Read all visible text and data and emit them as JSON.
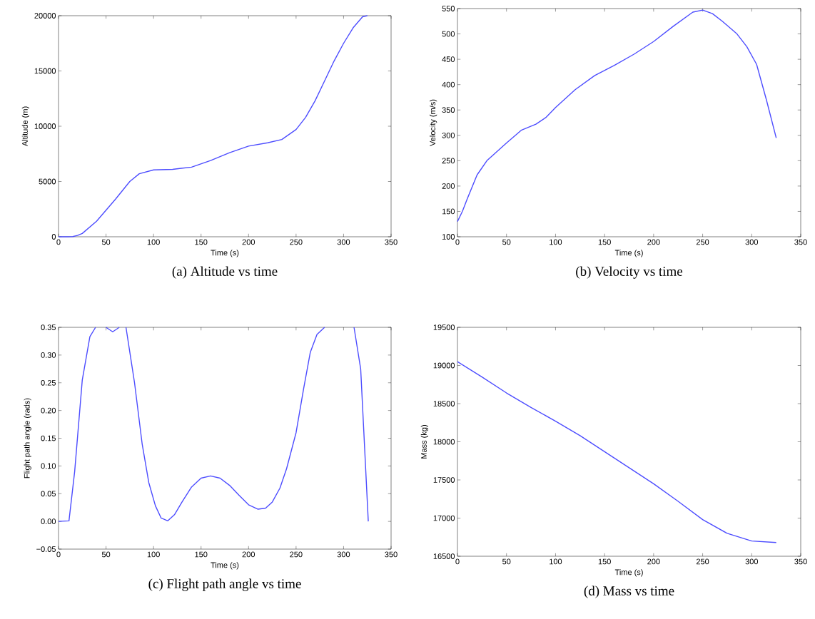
{
  "chart_data": [
    {
      "type": "line",
      "xlabel": "Time (s)",
      "ylabel": "Altitude (m)",
      "annotations": [
        "(a)  Altitude vs time"
      ],
      "xlim": [
        0,
        350
      ],
      "ylim": [
        0,
        20000
      ],
      "xticks": [
        0,
        50,
        100,
        150,
        200,
        250,
        300,
        350
      ],
      "yticks": [
        0,
        5000,
        10000,
        15000,
        20000
      ],
      "x": [
        0,
        10,
        15,
        20,
        25,
        40,
        60,
        75,
        85,
        100,
        120,
        140,
        160,
        180,
        200,
        220,
        235,
        250,
        260,
        270,
        280,
        290,
        300,
        310,
        320,
        325
      ],
      "series": [
        {
          "color": "#4d4dff",
          "values": [
            0,
            0,
            20,
            120,
            300,
            1400,
            3400,
            5000,
            5700,
            6050,
            6100,
            6300,
            6900,
            7600,
            8200,
            8500,
            8800,
            9700,
            10800,
            12300,
            14100,
            15900,
            17500,
            18900,
            19900,
            20000
          ]
        }
      ]
    },
    {
      "type": "line",
      "xlabel": "Time (s)",
      "ylabel": "Velocity (m/s)",
      "annotations": [
        "(b)  Velocity vs time"
      ],
      "xlim": [
        0,
        350
      ],
      "ylim": [
        100,
        550
      ],
      "xticks": [
        0,
        50,
        100,
        150,
        200,
        250,
        300,
        350
      ],
      "yticks": [
        100,
        150,
        200,
        250,
        300,
        350,
        400,
        450,
        500,
        550
      ],
      "x": [
        0,
        5,
        10,
        20,
        30,
        50,
        65,
        80,
        90,
        100,
        120,
        140,
        160,
        180,
        200,
        220,
        240,
        250,
        260,
        270,
        285,
        295,
        305,
        315,
        325
      ],
      "series": [
        {
          "color": "#4d4dff",
          "values": [
            130,
            150,
            175,
            222,
            250,
            285,
            310,
            322,
            335,
            355,
            390,
            418,
            438,
            460,
            485,
            515,
            543,
            547,
            540,
            525,
            500,
            475,
            440,
            370,
            295
          ]
        }
      ]
    },
    {
      "type": "line",
      "xlabel": "Time (s)",
      "ylabel": "Flight path angle (rads)",
      "annotations": [
        "(c)  Flight path angle vs time"
      ],
      "xlim": [
        0,
        350
      ],
      "ylim": [
        -0.05,
        0.35
      ],
      "xticks": [
        0,
        50,
        100,
        150,
        200,
        250,
        300,
        350
      ],
      "yticks": [
        {
          "value": -0.05,
          "label": "−0.05"
        },
        {
          "value": 0,
          "label": "0.00"
        },
        {
          "value": 0.05,
          "label": "0.05"
        },
        {
          "value": 0.1,
          "label": "0.10"
        },
        {
          "value": 0.15,
          "label": "0.15"
        },
        {
          "value": 0.2,
          "label": "0.20"
        },
        {
          "value": 0.25,
          "label": "0.25"
        },
        {
          "value": 0.3,
          "label": "0.30"
        },
        {
          "value": 0.35,
          "label": "0.35"
        }
      ],
      "x": [
        0,
        11,
        17,
        25,
        33,
        39,
        45,
        50,
        57,
        64,
        67,
        71,
        80,
        88,
        95,
        102,
        108,
        115,
        122,
        130,
        140,
        150,
        160,
        170,
        180,
        190,
        200,
        210,
        218,
        225,
        233,
        240,
        250,
        258,
        265,
        272,
        280,
        295,
        311,
        318,
        326
      ],
      "series": [
        {
          "color": "#4d4dff",
          "values": [
            0,
            0.001,
            0.09,
            0.255,
            0.333,
            0.35,
            null,
            0.35,
            0.342,
            0.35,
            null,
            0.35,
            0.25,
            0.14,
            0.07,
            0.028,
            0.006,
            0.001,
            0.012,
            0.035,
            0.062,
            0.078,
            0.082,
            0.078,
            0.065,
            0.047,
            0.03,
            0.022,
            0.024,
            0.035,
            0.06,
            0.095,
            0.16,
            0.24,
            0.305,
            0.337,
            0.35,
            null,
            0.35,
            0.275,
            0
          ]
        }
      ]
    },
    {
      "type": "line",
      "xlabel": "Time (s)",
      "ylabel": "Mass (kg)",
      "annotations": [
        "(d)  Mass vs time"
      ],
      "xlim": [
        0,
        350
      ],
      "ylim": [
        16500,
        19500
      ],
      "xticks": [
        0,
        50,
        100,
        150,
        200,
        250,
        300,
        350
      ],
      "yticks": [
        16500,
        17000,
        17500,
        18000,
        18500,
        19000,
        19500
      ],
      "x": [
        0,
        25,
        50,
        75,
        100,
        125,
        150,
        175,
        200,
        225,
        250,
        275,
        300,
        325
      ],
      "series": [
        {
          "color": "#4d4dff",
          "values": [
            19050,
            18850,
            18640,
            18450,
            18270,
            18080,
            17870,
            17660,
            17450,
            17220,
            16980,
            16800,
            16700,
            16680
          ]
        }
      ]
    }
  ]
}
